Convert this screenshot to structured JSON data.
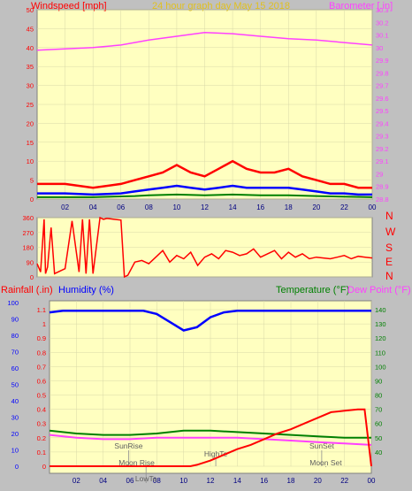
{
  "header": {
    "left_label": "Windspeed [mph]",
    "title": "24 hour graph day   May 15 2018",
    "right_label": "Barometer [.in]"
  },
  "direction_labels": [
    "N",
    "W",
    "S",
    "E",
    "N"
  ],
  "bottom_header": {
    "rainfall": "Rainfall (.in)",
    "humidity": "Humidity (%)",
    "temperature": "Temperature (°F)",
    "dewpoint": "Dew Point (°F)"
  },
  "annotations": {
    "sunrise": "SunRise",
    "moonrise": "Moon Rise",
    "lowtemp": "LowTe",
    "hightemp": "HighTe",
    "sunset": "SunSet",
    "moonset": "Moon Set"
  },
  "colors": {
    "plot_bg": "#ffffc0",
    "wind": "#ff0000",
    "wind_avg": "#0000ff",
    "wind_low": "#008000",
    "barometer": "#ff40ff",
    "direction": "#ff0000",
    "humidity": "#0000ff",
    "temperature": "#008000",
    "dewpoint": "#ff40ff",
    "rain": "#ff0000"
  },
  "chart_data": [
    {
      "type": "line",
      "name": "wind-barometer",
      "x_ticks": [
        "02",
        "04",
        "06",
        "08",
        "10",
        "12",
        "14",
        "16",
        "18",
        "20",
        "22",
        "00"
      ],
      "ylim_left": [
        0,
        50
      ],
      "yticks_left": [
        0,
        5,
        10,
        15,
        20,
        25,
        30,
        35,
        40,
        45,
        50
      ],
      "ylim_right": [
        28.8,
        30.3
      ],
      "yticks_right": [
        "28.8",
        "28.9",
        "29",
        "29.1",
        "29.2",
        "29.3",
        "29.4",
        "29.5",
        "29.6",
        "29.7",
        "29.8",
        "29.9",
        "30",
        "30.1",
        "30.2",
        "30.3"
      ],
      "gust": {
        "x": [
          0,
          2,
          4,
          6,
          7,
          8,
          9,
          10,
          11,
          12,
          13,
          14,
          15,
          16,
          17,
          18,
          19,
          20,
          21,
          22,
          23,
          24
        ],
        "y": [
          4,
          4,
          3,
          4,
          5,
          6,
          7,
          9,
          7,
          6,
          8,
          10,
          8,
          7,
          7,
          8,
          6,
          5,
          4,
          4,
          3,
          3
        ]
      },
      "avg": {
        "x": [
          0,
          2,
          4,
          6,
          7,
          8,
          9,
          10,
          11,
          12,
          13,
          14,
          15,
          16,
          17,
          18,
          19,
          20,
          21,
          22,
          23,
          24
        ],
        "y": [
          1.5,
          1.5,
          1.2,
          1.5,
          2,
          2.5,
          3,
          3.5,
          3,
          2.5,
          3,
          3.5,
          3,
          3,
          3,
          3,
          2.5,
          2,
          1.5,
          1.5,
          1.2,
          1.2
        ]
      },
      "low": {
        "x": [
          0,
          4,
          7,
          8,
          10,
          12,
          14,
          16,
          18,
          20,
          24
        ],
        "y": [
          0.5,
          0.5,
          0.8,
          1,
          1.2,
          1,
          1.2,
          1,
          1,
          0.8,
          0.5
        ]
      },
      "barometer": {
        "x": [
          0,
          2,
          4,
          6,
          8,
          10,
          12,
          14,
          16,
          18,
          20,
          22,
          24
        ],
        "y": [
          29.98,
          29.99,
          30.0,
          30.02,
          30.06,
          30.09,
          30.12,
          30.11,
          30.09,
          30.07,
          30.06,
          30.04,
          30.02
        ]
      }
    },
    {
      "type": "scatter",
      "name": "wind-direction",
      "ylim": [
        0,
        360
      ],
      "yticks": [
        0,
        90,
        180,
        270,
        360
      ],
      "x": [
        0,
        0.25,
        0.5,
        0.6,
        0.75,
        1.0,
        1.25,
        1.5,
        1.75,
        2.0,
        2.5,
        3.0,
        3.25,
        3.5,
        3.75,
        4.0,
        4.5,
        4.75,
        5.0,
        5.5,
        6.0,
        6.25,
        6.5,
        7.0,
        7.5,
        8.0,
        8.5,
        9.0,
        9.5,
        10.0,
        10.5,
        11.0,
        11.5,
        12.0,
        12.5,
        13.0,
        13.5,
        14.0,
        14.5,
        15.0,
        15.5,
        16.0,
        16.5,
        17.0,
        17.5,
        18.0,
        18.5,
        19.0,
        19.5,
        20.0,
        20.5,
        21.0,
        21.5,
        22.0,
        22.5,
        23.0,
        23.5,
        24.0
      ],
      "y": [
        80,
        30,
        350,
        20,
        60,
        300,
        20,
        30,
        40,
        50,
        340,
        30,
        350,
        20,
        350,
        20,
        360,
        350,
        355,
        350,
        345,
        0,
        10,
        90,
        100,
        80,
        120,
        160,
        90,
        130,
        110,
        150,
        70,
        120,
        140,
        110,
        160,
        150,
        130,
        140,
        170,
        120,
        140,
        160,
        110,
        150,
        120,
        140,
        110,
        120,
        115,
        110,
        120,
        130,
        110,
        125,
        120,
        115
      ]
    },
    {
      "type": "line",
      "name": "rain-humidity-temperature",
      "ylim_rain": [
        0,
        1.15
      ],
      "yticks_rain": [
        "0",
        "0.1",
        "0.2",
        "0.3",
        "0.4",
        "0.5",
        "0.6",
        "0.7",
        "0.8",
        "0.9",
        "1",
        "1.1"
      ],
      "ylim_humidity": [
        0,
        100
      ],
      "yticks_humidity": [
        0,
        10,
        20,
        30,
        40,
        50,
        60,
        70,
        80,
        90,
        100
      ],
      "ylim_temp": [
        30,
        145
      ],
      "yticks_temp": [
        40,
        50,
        60,
        70,
        80,
        90,
        100,
        110,
        120,
        130,
        140
      ],
      "humidity": {
        "x": [
          0,
          1,
          4,
          7,
          8,
          9,
          10,
          11,
          12,
          13,
          14,
          18,
          20,
          24
        ],
        "y": [
          94,
          95,
          95,
          95,
          93,
          88,
          83,
          85,
          91,
          94,
          95,
          95,
          95,
          95
        ]
      },
      "temperature": {
        "x": [
          0,
          2,
          4,
          6,
          8,
          10,
          12,
          14,
          16,
          18,
          20,
          22,
          24
        ],
        "y": [
          55,
          53,
          52,
          52,
          53,
          55,
          55,
          54,
          53,
          52,
          51,
          50,
          50
        ]
      },
      "dewpoint": {
        "x": [
          0,
          2,
          4,
          6,
          8,
          10,
          12,
          14,
          16,
          18,
          20,
          22,
          24
        ],
        "y": [
          52,
          50,
          49,
          49,
          50,
          50,
          50,
          50,
          49,
          48,
          47,
          46,
          45
        ]
      },
      "rain": {
        "x": [
          0,
          10.5,
          11,
          12,
          13,
          14,
          15,
          16,
          17,
          18,
          19,
          20,
          21,
          22,
          23,
          23.5,
          24
        ],
        "y": [
          0,
          0,
          0.01,
          0.04,
          0.08,
          0.12,
          0.15,
          0.19,
          0.23,
          0.26,
          0.3,
          0.34,
          0.38,
          0.39,
          0.4,
          0.4,
          0.0
        ]
      },
      "markers": {
        "sunrise": 5.9,
        "moonrise": 6.5,
        "lowtemp": 7.2,
        "hightemp": 12.4,
        "sunset": 20.3,
        "moonset": 20.6
      }
    }
  ]
}
